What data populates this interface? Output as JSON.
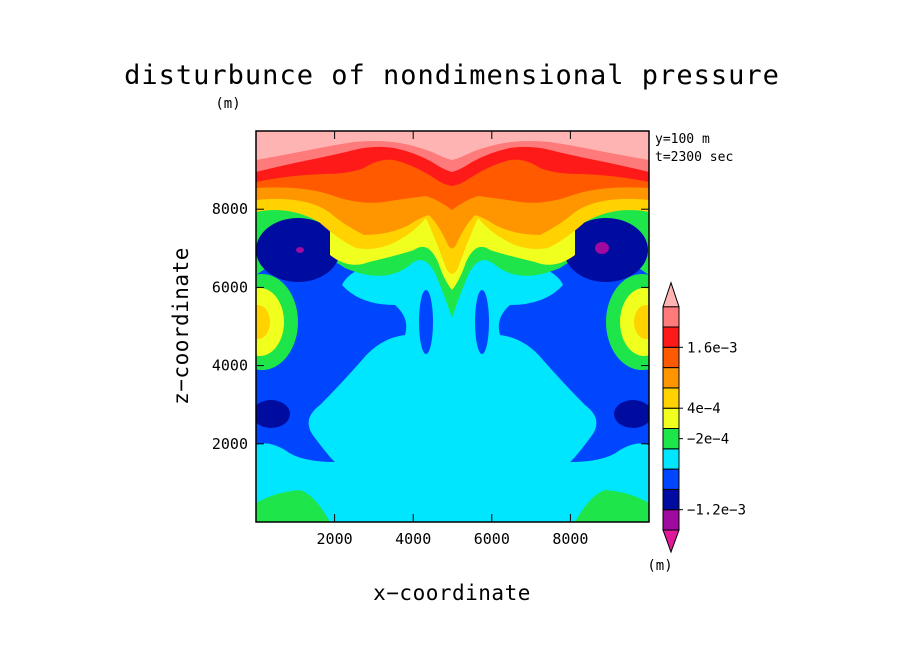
{
  "chart_data": {
    "type": "heatmap",
    "title": "disturbunce of nondimensional pressure",
    "title_unit": "(m)",
    "xlabel": "x−coordinate",
    "ylabel": "z−coordinate",
    "annotations": [
      "y=100 m",
      "t=2300 sec"
    ],
    "xlim": [
      0,
      10000
    ],
    "ylim": [
      0,
      10000
    ],
    "x_ticks": [
      2000,
      4000,
      6000,
      8000
    ],
    "x_tick_labels": [
      "2000",
      "4000",
      "6000",
      "8000"
    ],
    "y_ticks": [
      2000,
      4000,
      6000,
      8000
    ],
    "y_tick_labels": [
      "2000",
      "4000",
      "6000",
      "8000"
    ],
    "colorbar": {
      "unit": "(m)",
      "colors": [
        "#e0189a",
        "#a00aa0",
        "#000ca0",
        "#0046ff",
        "#00e6ff",
        "#1ee64a",
        "#f0ff1e",
        "#ffd200",
        "#ff9600",
        "#ff5a00",
        "#ff1a1a",
        "#ff7a7a",
        "#ffb4b4"
      ],
      "labels": [
        {
          "text": "1.6e−3",
          "boundary": 10
        },
        {
          "text": "4e−4",
          "boundary": 7
        },
        {
          "text": "−2e−4",
          "boundary": 5.5
        },
        {
          "text": "−1.2e−3",
          "boundary": 2
        }
      ]
    }
  }
}
